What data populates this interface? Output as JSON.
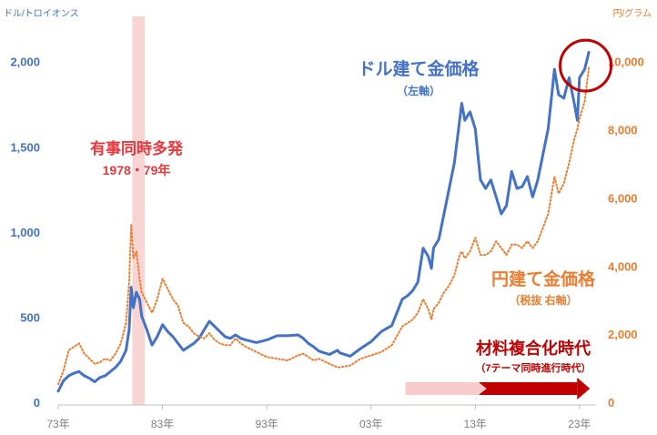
{
  "chart_data": {
    "type": "line",
    "left_axis": {
      "unit_label": "ドル/トロイオンス",
      "ticks": [
        0,
        500,
        1000,
        1500,
        2000
      ],
      "tick_labels": [
        "0",
        "500",
        "1,000",
        "1,500",
        "2,000"
      ],
      "range": [
        0,
        2100
      ],
      "color": "#4472C4"
    },
    "right_axis": {
      "unit_label": "円/グラム",
      "ticks": [
        0,
        2000,
        4000,
        6000,
        8000,
        10000
      ],
      "tick_labels": [
        "0",
        "2,000",
        "4,000",
        "6,000",
        "8,000",
        "10,000"
      ],
      "range": [
        0,
        10500
      ],
      "color": "#ED7D31"
    },
    "x_axis": {
      "range": [
        1973,
        2024.5
      ],
      "ticks": [
        1973,
        1983,
        1993,
        2003,
        2013,
        2023
      ],
      "tick_labels": [
        "73年",
        "83年",
        "93年",
        "03年",
        "13年",
        "23年"
      ]
    },
    "series": [
      {
        "name": "ドル建て金価格",
        "axis": "left",
        "color": "#4472C4",
        "style": "solid",
        "points": [
          [
            1973.0,
            60
          ],
          [
            1973.5,
            120
          ],
          [
            1974.0,
            150
          ],
          [
            1974.5,
            165
          ],
          [
            1975.0,
            175
          ],
          [
            1975.5,
            150
          ],
          [
            1976.0,
            135
          ],
          [
            1976.5,
            115
          ],
          [
            1977.0,
            140
          ],
          [
            1977.5,
            150
          ],
          [
            1978.0,
            175
          ],
          [
            1978.5,
            200
          ],
          [
            1979.0,
            235
          ],
          [
            1979.5,
            300
          ],
          [
            1979.8,
            420
          ],
          [
            1980.0,
            670
          ],
          [
            1980.2,
            550
          ],
          [
            1980.5,
            640
          ],
          [
            1980.8,
            600
          ],
          [
            1981.0,
            500
          ],
          [
            1981.5,
            420
          ],
          [
            1982.0,
            330
          ],
          [
            1982.5,
            380
          ],
          [
            1983.0,
            450
          ],
          [
            1983.5,
            410
          ],
          [
            1984.0,
            380
          ],
          [
            1984.5,
            340
          ],
          [
            1985.0,
            300
          ],
          [
            1985.5,
            320
          ],
          [
            1986.0,
            340
          ],
          [
            1986.5,
            370
          ],
          [
            1987.0,
            420
          ],
          [
            1987.5,
            470
          ],
          [
            1988.0,
            440
          ],
          [
            1988.5,
            410
          ],
          [
            1989.0,
            380
          ],
          [
            1989.5,
            370
          ],
          [
            1990.0,
            390
          ],
          [
            1990.5,
            370
          ],
          [
            1991.0,
            360
          ],
          [
            1992.0,
            345
          ],
          [
            1993.0,
            360
          ],
          [
            1994.0,
            385
          ],
          [
            1995.0,
            385
          ],
          [
            1996.0,
            390
          ],
          [
            1996.5,
            370
          ],
          [
            1997.0,
            340
          ],
          [
            1997.5,
            320
          ],
          [
            1998.0,
            295
          ],
          [
            1999.0,
            275
          ],
          [
            1999.8,
            300
          ],
          [
            2000.0,
            285
          ],
          [
            2001.0,
            265
          ],
          [
            2002.0,
            310
          ],
          [
            2003.0,
            350
          ],
          [
            2004.0,
            410
          ],
          [
            2005.0,
            445
          ],
          [
            2006.0,
            600
          ],
          [
            2006.5,
            620
          ],
          [
            2007.0,
            650
          ],
          [
            2007.5,
            700
          ],
          [
            2008.0,
            900
          ],
          [
            2008.5,
            850
          ],
          [
            2008.8,
            780
          ],
          [
            2009.0,
            900
          ],
          [
            2009.5,
            950
          ],
          [
            2010.0,
            1100
          ],
          [
            2010.5,
            1250
          ],
          [
            2011.0,
            1400
          ],
          [
            2011.5,
            1650
          ],
          [
            2011.7,
            1750
          ],
          [
            2012.0,
            1650
          ],
          [
            2012.5,
            1700
          ],
          [
            2013.0,
            1600
          ],
          [
            2013.5,
            1300
          ],
          [
            2014.0,
            1250
          ],
          [
            2014.5,
            1300
          ],
          [
            2015.0,
            1200
          ],
          [
            2015.5,
            1100
          ],
          [
            2016.0,
            1150
          ],
          [
            2016.5,
            1350
          ],
          [
            2017.0,
            1250
          ],
          [
            2017.5,
            1260
          ],
          [
            2018.0,
            1320
          ],
          [
            2018.5,
            1200
          ],
          [
            2019.0,
            1300
          ],
          [
            2019.5,
            1450
          ],
          [
            2020.0,
            1600
          ],
          [
            2020.6,
            1950
          ],
          [
            2021.0,
            1800
          ],
          [
            2021.5,
            1780
          ],
          [
            2022.0,
            1900
          ],
          [
            2022.5,
            1750
          ],
          [
            2022.8,
            1650
          ],
          [
            2023.0,
            1900
          ],
          [
            2023.5,
            1950
          ],
          [
            2023.9,
            2050
          ]
        ]
      },
      {
        "name": "円建て金価格",
        "axis": "right",
        "color": "#ED7D31",
        "style": "dotted",
        "points": [
          [
            1973.0,
            500
          ],
          [
            1973.5,
            900
          ],
          [
            1974.0,
            1500
          ],
          [
            1974.5,
            1600
          ],
          [
            1975.0,
            1700
          ],
          [
            1975.5,
            1400
          ],
          [
            1976.0,
            1250
          ],
          [
            1976.5,
            1100
          ],
          [
            1977.0,
            1150
          ],
          [
            1977.5,
            1250
          ],
          [
            1978.0,
            1200
          ],
          [
            1978.5,
            1400
          ],
          [
            1979.0,
            1700
          ],
          [
            1979.5,
            2300
          ],
          [
            1979.8,
            3500
          ],
          [
            1980.0,
            5200
          ],
          [
            1980.2,
            4200
          ],
          [
            1980.5,
            4400
          ],
          [
            1980.8,
            3600
          ],
          [
            1981.0,
            3200
          ],
          [
            1981.5,
            2900
          ],
          [
            1982.0,
            2600
          ],
          [
            1982.5,
            3000
          ],
          [
            1983.0,
            3600
          ],
          [
            1983.5,
            3300
          ],
          [
            1984.0,
            3000
          ],
          [
            1984.5,
            2800
          ],
          [
            1985.0,
            2300
          ],
          [
            1985.5,
            2200
          ],
          [
            1986.0,
            2000
          ],
          [
            1986.5,
            1900
          ],
          [
            1987.0,
            1850
          ],
          [
            1987.5,
            2000
          ],
          [
            1988.0,
            1800
          ],
          [
            1988.5,
            1700
          ],
          [
            1989.0,
            1650
          ],
          [
            1989.5,
            1650
          ],
          [
            1990.0,
            1850
          ],
          [
            1990.5,
            1700
          ],
          [
            1991.0,
            1600
          ],
          [
            1992.0,
            1450
          ],
          [
            1993.0,
            1300
          ],
          [
            1994.0,
            1250
          ],
          [
            1995.0,
            1200
          ],
          [
            1996.0,
            1350
          ],
          [
            1996.5,
            1400
          ],
          [
            1997.0,
            1300
          ],
          [
            1997.5,
            1200
          ],
          [
            1998.0,
            1250
          ],
          [
            1999.0,
            1100
          ],
          [
            1999.8,
            1000
          ],
          [
            2000.0,
            1000
          ],
          [
            2001.0,
            1050
          ],
          [
            2002.0,
            1250
          ],
          [
            2003.0,
            1350
          ],
          [
            2004.0,
            1450
          ],
          [
            2005.0,
            1650
          ],
          [
            2006.0,
            2200
          ],
          [
            2006.5,
            2300
          ],
          [
            2007.0,
            2400
          ],
          [
            2007.5,
            2600
          ],
          [
            2008.0,
            3000
          ],
          [
            2008.5,
            2700
          ],
          [
            2008.8,
            2400
          ],
          [
            2009.0,
            2700
          ],
          [
            2009.5,
            2900
          ],
          [
            2010.0,
            3200
          ],
          [
            2010.5,
            3400
          ],
          [
            2011.0,
            3700
          ],
          [
            2011.5,
            4300
          ],
          [
            2011.7,
            4400
          ],
          [
            2012.0,
            4200
          ],
          [
            2012.5,
            4400
          ],
          [
            2013.0,
            4800
          ],
          [
            2013.5,
            4300
          ],
          [
            2014.0,
            4300
          ],
          [
            2014.5,
            4400
          ],
          [
            2015.0,
            4700
          ],
          [
            2015.5,
            4500
          ],
          [
            2016.0,
            4300
          ],
          [
            2016.5,
            4600
          ],
          [
            2017.0,
            4600
          ],
          [
            2017.5,
            4500
          ],
          [
            2018.0,
            4700
          ],
          [
            2018.5,
            4500
          ],
          [
            2019.0,
            4700
          ],
          [
            2019.5,
            5100
          ],
          [
            2020.0,
            5500
          ],
          [
            2020.6,
            6600
          ],
          [
            2021.0,
            6100
          ],
          [
            2021.5,
            6400
          ],
          [
            2022.0,
            7000
          ],
          [
            2022.5,
            7700
          ],
          [
            2022.8,
            8000
          ],
          [
            2023.0,
            8300
          ],
          [
            2023.5,
            8800
          ],
          [
            2023.9,
            9800
          ]
        ]
      }
    ],
    "highlight_band": {
      "x_start": 1980.1,
      "x_end": 1981.3,
      "color": "#F8D5D5"
    },
    "annotations": {
      "crisis_title": "有事同時多発",
      "crisis_years": "1978・79年",
      "usd_title": "ドル建て金価格",
      "usd_sub": "（左軸）",
      "jpy_title": "円建て金価格",
      "jpy_sub": "（税抜 右軸）",
      "era_title": "材料複合化時代",
      "era_sub": "（7テーマ同時進行時代）"
    },
    "era_arrow": {
      "x_start": 2006.3,
      "x_mid": 2013.4,
      "x_end": 2024.0,
      "color_light": "#F8CACA",
      "color_dark": "#C00000"
    },
    "peak_circle": {
      "x": 2023.5,
      "y_left": 1950,
      "color": "#C00000"
    },
    "colors": {
      "crisis_text": "#E8383D",
      "era_text": "#C00000",
      "axis_line": "#BFBFBF",
      "tick_text": "#7F7F7F"
    }
  }
}
